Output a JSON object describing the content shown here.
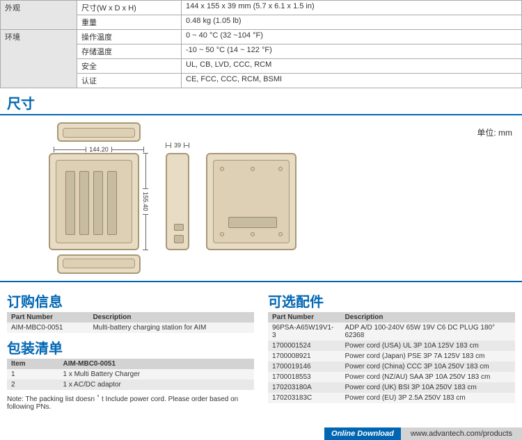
{
  "spec": {
    "rows": [
      {
        "cat": "外观",
        "catRowspan": 2,
        "label": "尺寸(W x D x H)",
        "value": "144 x 155 x 39 mm (5.7 x 6.1 x 1.5 in)"
      },
      {
        "label": "重量",
        "value": "0.48 kg (1.05 lb)"
      },
      {
        "cat": "环境",
        "catRowspan": 4,
        "label": "操作温度",
        "value": "0 ~ 40 °C (32 ~104 °F)"
      },
      {
        "label": "存储温度",
        "value": "-10 ~ 50 °C (14 ~ 122 °F)"
      },
      {
        "label": "安全",
        "value": "UL, CB, LVD, CCC, RCM"
      },
      {
        "label": "认证",
        "value": "CE, FCC, CCC, RCM, BSMI"
      }
    ]
  },
  "dimensions": {
    "title": "尺寸",
    "unit": "单位: mm",
    "width": "144.20",
    "depth": "155.40",
    "height": "39"
  },
  "ordering": {
    "title": "订购信息",
    "headers": [
      "Part Number",
      "Description"
    ],
    "rows": [
      [
        "AIM-MBC0-0051",
        "Multi-battery charging station for AIM"
      ]
    ]
  },
  "packing": {
    "title": "包装清单",
    "headers": [
      "Item",
      "AIM-MBC0-0051"
    ],
    "rows": [
      [
        "1",
        "1 x Multi Battery Charger"
      ],
      [
        "2",
        "1 x AC/DC adaptor"
      ]
    ],
    "note": "Note: The packing list doesn＇t Include power cord. Please order based on following PNs."
  },
  "optional": {
    "title": "可选配件",
    "headers": [
      "Part Number",
      "Description"
    ],
    "rows": [
      [
        "96PSA-A65W19V1-3",
        "ADP A/D 100-240V 65W 19V C6 DC PLUG 180° 62368"
      ],
      [
        "1700001524",
        "Power cord (USA) UL 3P 10A 125V 183 cm"
      ],
      [
        "1700008921",
        "Power cord (Japan) PSE 3P 7A 125V 183 cm"
      ],
      [
        "1700019146",
        "Power cord (China) CCC 3P 10A 250V 183 cm"
      ],
      [
        "1700018553",
        "Power cord (NZ/AU) SAA 3P 10A 250V 183 cm"
      ],
      [
        "170203180A",
        "Power cord (UK) BSI 3P 10A 250V 183 cm"
      ],
      [
        "170203183C",
        "Power cord (EU) 3P 2.5A 250V 183 cm"
      ]
    ]
  },
  "footer": {
    "dl": "Online Download",
    "url": "www.advantech.com/products"
  }
}
